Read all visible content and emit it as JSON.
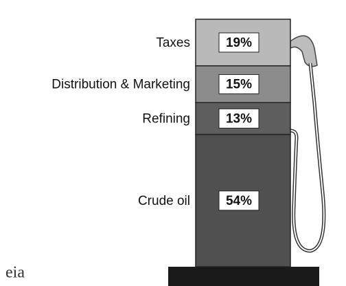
{
  "chart_data": {
    "type": "bar",
    "categories": [
      "Crude oil",
      "Refining",
      "Distribution & Marketing",
      "Taxes"
    ],
    "values": [
      54,
      13,
      15,
      19
    ],
    "value_labels": [
      "54%",
      "13%",
      "15%",
      "19%"
    ],
    "colors": [
      "#505050",
      "#5e5e5e",
      "#8c8c8c",
      "#b9b9b9"
    ],
    "logo": "eia"
  }
}
